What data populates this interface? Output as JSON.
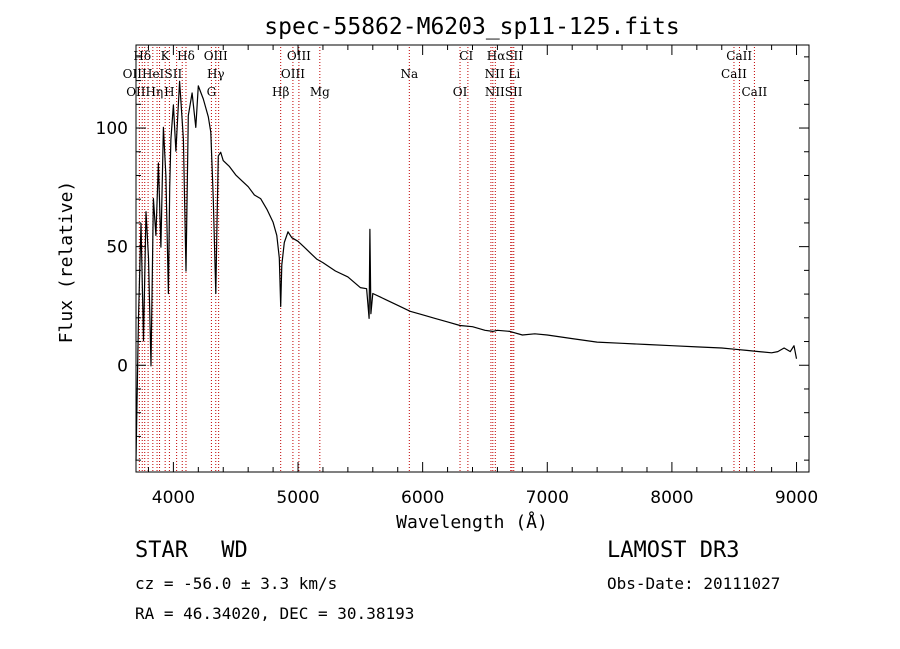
{
  "chart_data": {
    "type": "line",
    "title": "spec-55862-M6203_sp11-125.fits",
    "xlabel": "Wavelength (Å)",
    "ylabel": "Flux (relative)",
    "xlim": [
      3700,
      9100
    ],
    "ylim": [
      -45,
      135
    ],
    "xticks": [
      4000,
      5000,
      6000,
      7000,
      8000,
      9000
    ],
    "yticks": [
      0,
      50,
      100
    ],
    "grid": false,
    "series": [
      {
        "name": "spectrum",
        "x": [
          3700,
          3720,
          3740,
          3760,
          3780,
          3800,
          3820,
          3840,
          3860,
          3880,
          3900,
          3920,
          3940,
          3960,
          3970,
          3980,
          4000,
          4020,
          4050,
          4080,
          4101,
          4120,
          4150,
          4180,
          4200,
          4240,
          4280,
          4300,
          4320,
          4340,
          4350,
          4360,
          4380,
          4400,
          4450,
          4500,
          4550,
          4600,
          4650,
          4700,
          4750,
          4800,
          4830,
          4850,
          4861,
          4870,
          4890,
          4920,
          4950,
          5000,
          5050,
          5100,
          5150,
          5200,
          5300,
          5400,
          5500,
          5550,
          5570,
          5577,
          5585,
          5600,
          5700,
          5800,
          5900,
          6000,
          6100,
          6200,
          6300,
          6400,
          6500,
          6563,
          6600,
          6700,
          6800,
          6900,
          7000,
          7200,
          7400,
          7600,
          7800,
          8000,
          8200,
          8400,
          8500,
          8600,
          8700,
          8800,
          8850,
          8900,
          8950,
          8980,
          9000
        ],
        "y": [
          -40,
          20,
          60,
          10,
          65,
          45,
          0,
          70,
          55,
          85,
          50,
          100,
          80,
          30,
          75,
          95,
          110,
          90,
          120,
          95,
          40,
          105,
          115,
          100,
          118,
          112,
          105,
          98,
          70,
          30,
          60,
          88,
          90,
          86,
          84,
          80,
          78,
          75,
          72,
          70,
          66,
          60,
          55,
          45,
          25,
          42,
          52,
          56,
          54,
          52,
          50,
          47,
          45,
          43,
          40,
          37,
          33,
          32,
          20,
          57,
          22,
          30,
          28,
          25,
          23,
          21,
          20,
          18,
          17,
          16,
          15,
          14,
          15,
          14,
          13,
          13,
          13,
          11,
          10,
          9,
          9,
          8,
          8,
          7,
          7,
          6,
          6,
          5,
          6,
          7,
          6,
          8,
          3
        ]
      }
    ],
    "line_labels": [
      {
        "text": "Hδ",
        "x": 3750,
        "row": 0
      },
      {
        "text": "K",
        "x": 3934,
        "row": 0
      },
      {
        "text": "Hδ",
        "x": 4101,
        "row": 0
      },
      {
        "text": "OIII",
        "x": 4340,
        "row": 0
      },
      {
        "text": "OIII",
        "x": 5007,
        "row": 0
      },
      {
        "text": "CI",
        "x": 6350,
        "row": 0
      },
      {
        "text": "HαSII",
        "x": 6660,
        "row": 0
      },
      {
        "text": "CaII",
        "x": 8540,
        "row": 0
      },
      {
        "text": "OIIHeI",
        "x": 3760,
        "row": 1
      },
      {
        "text": "SII",
        "x": 4000,
        "row": 1
      },
      {
        "text": "Hγ",
        "x": 4340,
        "row": 1
      },
      {
        "text": "OIII",
        "x": 4959,
        "row": 1
      },
      {
        "text": "Na",
        "x": 5893,
        "row": 1
      },
      {
        "text": "NII Li",
        "x": 6640,
        "row": 1
      },
      {
        "text": "CaII",
        "x": 8498,
        "row": 1
      },
      {
        "text": "OIIHη",
        "x": 3770,
        "row": 2
      },
      {
        "text": "H",
        "x": 3968,
        "row": 2
      },
      {
        "text": "G",
        "x": 4305,
        "row": 2
      },
      {
        "text": "Hβ",
        "x": 4861,
        "row": 2
      },
      {
        "text": "Mg",
        "x": 5175,
        "row": 2
      },
      {
        "text": "OI",
        "x": 6300,
        "row": 2
      },
      {
        "text": "NIISII",
        "x": 6650,
        "row": 2
      },
      {
        "text": "CaII",
        "x": 8662,
        "row": 2
      }
    ],
    "line_markers": [
      3727,
      3750,
      3770,
      3797,
      3835,
      3869,
      3889,
      3934,
      3968,
      4026,
      4071,
      4101,
      4305,
      4340,
      4363,
      4861,
      4959,
      5007,
      5175,
      5893,
      6300,
      6363,
      6548,
      6563,
      6583,
      6707,
      6717,
      6731,
      8498,
      8542,
      8662
    ]
  },
  "info": {
    "object_class": "STAR",
    "subclass": "WD",
    "redshift": "cz = -56.0 ± 3.3 km/s",
    "coords": "RA =  46.34020, DEC =  30.38193",
    "survey": "LAMOST DR3",
    "obs_date": "Obs-Date: 20111027"
  }
}
